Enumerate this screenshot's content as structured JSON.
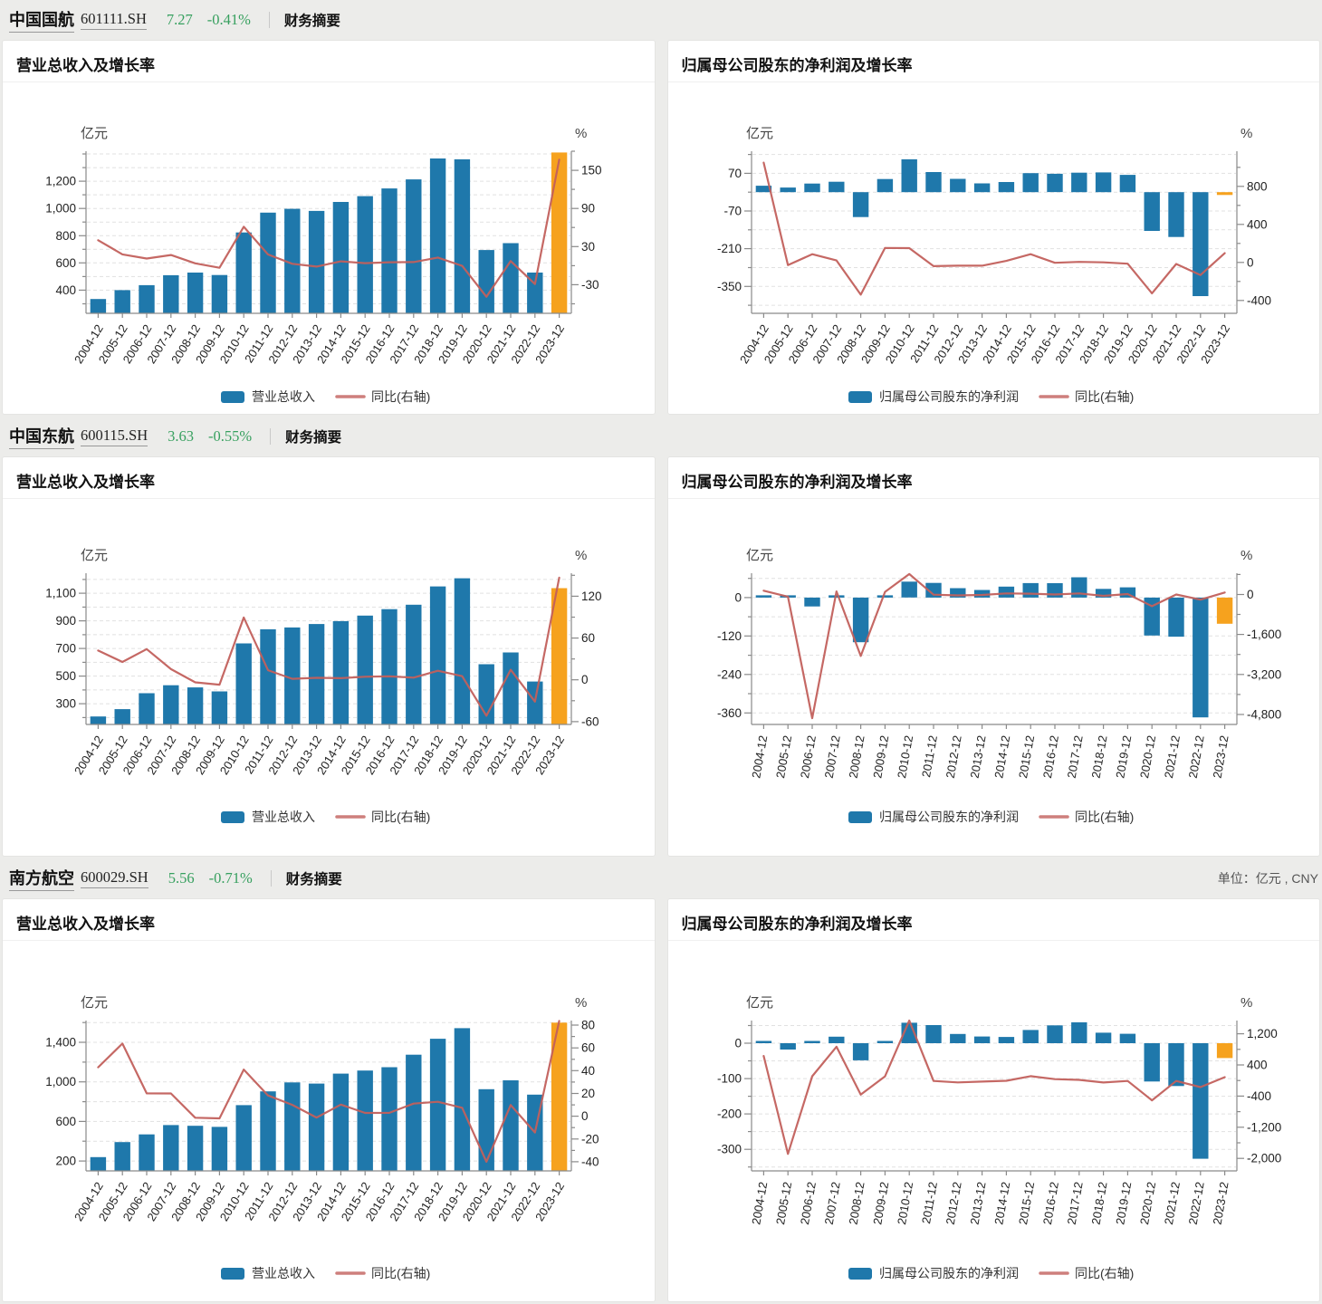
{
  "page": {
    "unit_note": "单位：亿元 , CNY"
  },
  "colors": {
    "bar": "#1f78ab",
    "bar_last": "#f6a21e",
    "line": "#c2605c",
    "grid": "#e1e1e1",
    "axis": "#8a8a8a",
    "tick_text": "#222222",
    "green": "#37a05f"
  },
  "stocks": [
    {
      "name": "中国国航",
      "code": "601111.SH",
      "price": "7.27",
      "change": "-0.41%",
      "link": "财务摘要"
    },
    {
      "name": "中国东航",
      "code": "600115.SH",
      "price": "3.63",
      "change": "-0.55%",
      "link": "财务摘要"
    },
    {
      "name": "南方航空",
      "code": "600029.SH",
      "price": "5.56",
      "change": "-0.71%",
      "link": "财务摘要"
    }
  ],
  "chart_data": [
    {
      "type": "bar",
      "subtype": "combo-bar-line",
      "title": "营业总收入及增长率",
      "stock": "中国国航",
      "categories": [
        "2004-12",
        "2005-12",
        "2006-12",
        "2007-12",
        "2008-12",
        "2009-12",
        "2010-12",
        "2011-12",
        "2012-12",
        "2013-12",
        "2014-12",
        "2015-12",
        "2016-12",
        "2017-12",
        "2018-12",
        "2019-12",
        "2020-12",
        "2021-12",
        "2022-12",
        "2023-12"
      ],
      "series": [
        {
          "name": "营业总收入",
          "type": "bar",
          "axis": "left",
          "values": [
            335,
            400,
            437,
            510,
            529,
            511,
            824,
            969,
            997,
            982,
            1048,
            1090,
            1147,
            1213,
            1367,
            1361,
            695,
            745,
            529,
            1411
          ]
        },
        {
          "name": "同比(右轴)",
          "type": "line",
          "axis": "right",
          "values": [
            40,
            17.8,
            11.2,
            16.8,
            3.7,
            -3.4,
            61.2,
            17.6,
            2.9,
            -1.5,
            6.7,
            3.9,
            5.3,
            5.7,
            12.7,
            -0.4,
            -48.9,
            7.2,
            -29.0,
            166.7
          ]
        }
      ],
      "bar_base": "bottom",
      "left_axis": {
        "unit": "亿元",
        "min": 230,
        "max": 1420,
        "ticks": [
          400,
          600,
          800,
          1000,
          1200
        ],
        "minor_step": 100
      },
      "right_axis": {
        "unit": "%",
        "min": -75,
        "max": 180,
        "ticks": [
          -30,
          30,
          90,
          150
        ],
        "minor_step": 30
      },
      "legend_position": "bottom-center",
      "grid": "dashed-horizontal"
    },
    {
      "type": "bar",
      "subtype": "combo-bar-line",
      "title": "归属母公司股东的净利润及增长率",
      "stock": "中国国航",
      "categories": [
        "2004-12",
        "2005-12",
        "2006-12",
        "2007-12",
        "2008-12",
        "2009-12",
        "2010-12",
        "2011-12",
        "2012-12",
        "2013-12",
        "2014-12",
        "2015-12",
        "2016-12",
        "2017-12",
        "2018-12",
        "2019-12",
        "2020-12",
        "2021-12",
        "2022-12",
        "2023-12"
      ],
      "series": [
        {
          "name": "归属母公司股东的净利润",
          "type": "bar",
          "axis": "left",
          "values": [
            23.9,
            17.1,
            31.9,
            38.8,
            -92.6,
            48.6,
            122.1,
            74.8,
            49.5,
            32.6,
            37.8,
            70.6,
            68.1,
            72.4,
            73.4,
            64.1,
            -144.1,
            -166.4,
            -386.2,
            -10.5
          ]
        },
        {
          "name": "同比(右轴)",
          "type": "line",
          "axis": "right",
          "values": [
            1050,
            -28.4,
            86.6,
            21.6,
            -339,
            152.4,
            151.2,
            -38.7,
            -33.8,
            -34.2,
            16.1,
            86.8,
            -3.6,
            6.3,
            1.3,
            -12.6,
            -324.9,
            -15.5,
            -132.1,
            97.3
          ]
        }
      ],
      "bar_base": "zero",
      "left_axis": {
        "unit": "亿元",
        "min": -450,
        "max": 152,
        "ticks": [
          -350,
          -210,
          -70,
          70
        ],
        "minor_step": 70
      },
      "right_axis": {
        "unit": "%",
        "min": -535,
        "max": 1170,
        "ticks": [
          -400,
          0,
          400,
          800
        ],
        "minor_step": 200
      },
      "legend_position": "bottom-center",
      "grid": "dashed-horizontal"
    },
    {
      "type": "bar",
      "subtype": "combo-bar-line",
      "title": "营业总收入及增长率",
      "stock": "中国东航",
      "categories": [
        "2004-12",
        "2005-12",
        "2006-12",
        "2007-12",
        "2008-12",
        "2009-12",
        "2010-12",
        "2011-12",
        "2012-12",
        "2013-12",
        "2014-12",
        "2015-12",
        "2016-12",
        "2017-12",
        "2018-12",
        "2019-12",
        "2020-12",
        "2021-12",
        "2022-12",
        "2023-12"
      ],
      "series": [
        {
          "name": "营业总收入",
          "type": "bar",
          "axis": "left",
          "values": [
            208,
            261,
            376,
            434,
            418,
            389,
            737,
            839,
            852,
            877,
            898,
            938,
            985,
            1017,
            1149,
            1208,
            586,
            671,
            461,
            1137
          ]
        },
        {
          "name": "同比(右轴)",
          "type": "line",
          "axis": "right",
          "values": [
            42,
            25.6,
            44.1,
            15.4,
            -3.6,
            -6.9,
            89.5,
            13.8,
            1.5,
            2.9,
            2.4,
            4.5,
            5.0,
            3.2,
            13.0,
            5.2,
            -51.5,
            14.5,
            -31.3,
            146.6
          ]
        }
      ],
      "bar_base": "bottom",
      "left_axis": {
        "unit": "亿元",
        "min": 150,
        "max": 1245,
        "ticks": [
          300,
          500,
          700,
          900,
          1100
        ],
        "minor_step": 100
      },
      "right_axis": {
        "unit": "%",
        "min": -64,
        "max": 153,
        "ticks": [
          -60,
          0,
          60,
          120
        ],
        "minor_step": 30
      },
      "legend_position": "bottom-center",
      "grid": "dashed-horizontal"
    },
    {
      "type": "bar",
      "subtype": "combo-bar-line",
      "title": "归属母公司股东的净利润及增长率",
      "stock": "中国东航",
      "categories": [
        "2004-12",
        "2005-12",
        "2006-12",
        "2007-12",
        "2008-12",
        "2009-12",
        "2010-12",
        "2011-12",
        "2012-12",
        "2013-12",
        "2014-12",
        "2015-12",
        "2016-12",
        "2017-12",
        "2018-12",
        "2019-12",
        "2020-12",
        "2021-12",
        "2022-12",
        "2023-12"
      ],
      "series": [
        {
          "name": "归属母公司股东的净利润",
          "type": "bar",
          "axis": "left",
          "values": [
            4.9,
            0.6,
            -27.8,
            5.9,
            -139.3,
            5.4,
            49.6,
            45.8,
            29.3,
            23.7,
            34.1,
            45.1,
            45.0,
            63.4,
            27.1,
            32.0,
            -118.4,
            -122.1,
            -373.9,
            -81.7
          ]
        },
        {
          "name": "同比(右轴)",
          "type": "line",
          "axis": "right",
          "values": [
            150,
            -88.6,
            -4951,
            121.2,
            -2463,
            103.9,
            818,
            -7.6,
            -36.0,
            -19.1,
            43.9,
            32.3,
            -0.2,
            40.9,
            -57.3,
            18.1,
            -470.4,
            -3.1,
            -206.2,
            78.1
          ]
        }
      ],
      "bar_base": "zero",
      "left_axis": {
        "unit": "亿元",
        "min": -396,
        "max": 76,
        "ticks": [
          -360,
          -240,
          -120,
          0
        ],
        "minor_step": 60
      },
      "right_axis": {
        "unit": "%",
        "min": -5200,
        "max": 850,
        "ticks": [
          -4800,
          -3200,
          -1600,
          0
        ],
        "minor_step": 800
      },
      "legend_position": "bottom-center",
      "grid": "dashed-horizontal"
    },
    {
      "type": "bar",
      "subtype": "combo-bar-line",
      "title": "营业总收入及增长率",
      "stock": "南方航空",
      "categories": [
        "2004-12",
        "2005-12",
        "2006-12",
        "2007-12",
        "2008-12",
        "2009-12",
        "2010-12",
        "2011-12",
        "2012-12",
        "2013-12",
        "2014-12",
        "2015-12",
        "2016-12",
        "2017-12",
        "2018-12",
        "2019-12",
        "2020-12",
        "2021-12",
        "2022-12",
        "2023-12"
      ],
      "series": [
        {
          "name": "营业总收入",
          "type": "bar",
          "axis": "left",
          "values": [
            239,
            391,
            469,
            563,
            556,
            545,
            765,
            904,
            995,
            983,
            1083,
            1115,
            1148,
            1275,
            1436,
            1543,
            926,
            1016,
            871,
            1599
          ]
        },
        {
          "name": "同比(右轴)",
          "type": "line",
          "axis": "right",
          "values": [
            43,
            63.8,
            20.1,
            20.0,
            -1.3,
            -1.9,
            41.0,
            18.2,
            10.0,
            -1.2,
            10.2,
            2.9,
            3.0,
            11.1,
            12.7,
            7.4,
            -40.0,
            9.8,
            -14.3,
            83.7
          ]
        }
      ],
      "bar_base": "bottom",
      "left_axis": {
        "unit": "亿元",
        "min": 100,
        "max": 1620,
        "ticks": [
          200,
          600,
          1000,
          1400
        ],
        "minor_step": 200
      },
      "right_axis": {
        "unit": "%",
        "min": -48,
        "max": 84,
        "ticks": [
          -40,
          -20,
          0,
          20,
          40,
          60,
          80
        ],
        "minor_step": 10
      },
      "legend_position": "bottom-center",
      "grid": "dashed-horizontal"
    },
    {
      "type": "bar",
      "subtype": "combo-bar-line",
      "title": "归属母公司股东的净利润及增长率",
      "stock": "南方航空",
      "categories": [
        "2004-12",
        "2005-12",
        "2006-12",
        "2007-12",
        "2008-12",
        "2009-12",
        "2010-12",
        "2011-12",
        "2012-12",
        "2013-12",
        "2014-12",
        "2015-12",
        "2016-12",
        "2017-12",
        "2018-12",
        "2019-12",
        "2020-12",
        "2021-12",
        "2022-12",
        "2023-12"
      ],
      "series": [
        {
          "name": "归属母公司股东的净利润",
          "type": "bar",
          "axis": "left",
          "values": [
            0.9,
            -17.9,
            1.9,
            18.4,
            -48.3,
            3.3,
            57.8,
            51.1,
            26.2,
            19.0,
            17.7,
            37.4,
            50.5,
            59.1,
            29.8,
            26.5,
            -108.4,
            -121.0,
            -326.8,
            -42.1
          ]
        },
        {
          "name": "同比(右轴)",
          "type": "line",
          "axis": "right",
          "values": [
            630,
            -1883,
            110.4,
            868.4,
            -362.9,
            106.8,
            1652,
            -11.6,
            -48.7,
            -27.5,
            -6.8,
            111.3,
            35.0,
            17.0,
            -49.6,
            -11.2,
            -509.0,
            -11.6,
            -170.1,
            87.1
          ]
        }
      ],
      "bar_base": "zero",
      "left_axis": {
        "unit": "亿元",
        "min": -361,
        "max": 64,
        "ticks": [
          -300,
          -200,
          -100,
          0
        ],
        "minor_step": 50
      },
      "right_axis": {
        "unit": "%",
        "min": -2320,
        "max": 1540,
        "ticks": [
          -2000,
          -1200,
          -400,
          400,
          1200
        ],
        "minor_step": 400
      },
      "legend_position": "bottom-center",
      "grid": "dashed-horizontal"
    }
  ]
}
